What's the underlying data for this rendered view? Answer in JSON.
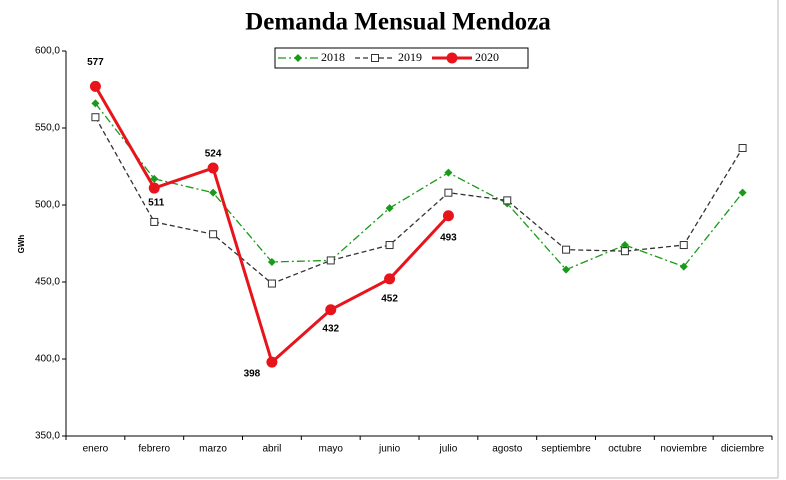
{
  "chart_data": {
    "type": "line",
    "title": "Demanda Mensual Mendoza",
    "y_label": "GWh",
    "categories": [
      "enero",
      "febrero",
      "marzo",
      "abril",
      "mayo",
      "junio",
      "julio",
      "agosto",
      "septiembre",
      "octubre",
      "noviembre",
      "diciembre"
    ],
    "series": [
      {
        "name": "2018",
        "color": "#1a9a1a",
        "marker": "diamond",
        "linestyle": "dashdot",
        "values": [
          566,
          517,
          508,
          463,
          464,
          498,
          521,
          501,
          458,
          474,
          460,
          508
        ]
      },
      {
        "name": "2019",
        "color": "#333333",
        "marker": "square",
        "linestyle": "dashed",
        "values": [
          557,
          489,
          481,
          449,
          464,
          474,
          508,
          503,
          471,
          470,
          474,
          537
        ]
      },
      {
        "name": "2020",
        "color": "#e8141c",
        "marker": "circle",
        "linestyle": "solid",
        "values": [
          577,
          511,
          524,
          398,
          432,
          452,
          493,
          null,
          null,
          null,
          null,
          null
        ],
        "value_labels": [
          "577",
          "511",
          "524",
          "398",
          "432",
          "452",
          "493",
          null,
          null,
          null,
          null,
          null
        ]
      }
    ],
    "ylim": [
      350,
      600
    ],
    "yticks": [
      {
        "value": 350,
        "label": "350,0"
      },
      {
        "value": 400,
        "label": "400,0"
      },
      {
        "value": 450,
        "label": "450,0"
      },
      {
        "value": 500,
        "label": "500,0"
      },
      {
        "value": 550,
        "label": "550,0"
      },
      {
        "value": 600,
        "label": "600,0"
      }
    ],
    "legend": "top"
  }
}
